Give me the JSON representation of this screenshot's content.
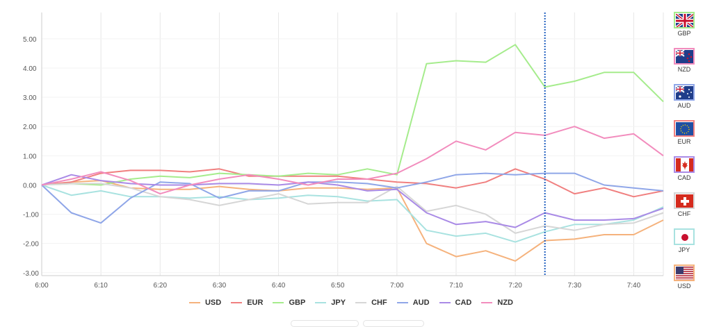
{
  "chart_data": {
    "type": "line",
    "title": "",
    "xlabel": "",
    "ylabel": "",
    "x": [
      "6:00",
      "6:05",
      "6:10",
      "6:15",
      "6:20",
      "6:25",
      "6:30",
      "6:35",
      "6:40",
      "6:45",
      "6:50",
      "6:55",
      "7:00",
      "7:05",
      "7:10",
      "7:15",
      "7:20",
      "7:25",
      "7:30",
      "7:35",
      "7:40",
      "7:45"
    ],
    "x_tick_labels": [
      "6:00",
      "6:10",
      "6:20",
      "6:30",
      "6:40",
      "6:50",
      "7:00",
      "7:10",
      "7:20",
      "7:30",
      "7:40"
    ],
    "y_tick_labels": [
      "5.00",
      "4.00",
      "3.00",
      "2.00",
      "1.00",
      "0.00",
      "-1.00",
      "-2.00",
      "-3.00"
    ],
    "ylim": [
      -3.1,
      5.9
    ],
    "grid": true,
    "legend_position": "bottom",
    "marker_x": "7:25",
    "series": [
      {
        "name": "USD",
        "color": "#f5b27c",
        "values": [
          0,
          0.1,
          0.15,
          -0.1,
          -0.15,
          -0.15,
          -0.05,
          -0.15,
          -0.2,
          -0.1,
          -0.1,
          -0.15,
          -0.1,
          -2.0,
          -2.45,
          -2.25,
          -2.6,
          -1.9,
          -1.85,
          -1.7,
          -1.7,
          -1.2
        ]
      },
      {
        "name": "EUR",
        "color": "#f07f7f",
        "values": [
          0,
          0.1,
          0.4,
          0.5,
          0.5,
          0.45,
          0.55,
          0.3,
          0.3,
          0.3,
          0.3,
          0.2,
          0.1,
          0.05,
          -0.1,
          0.1,
          0.55,
          0.2,
          -0.3,
          -0.1,
          -0.4,
          -0.2
        ]
      },
      {
        "name": "GBP",
        "color": "#a5ec8c",
        "values": [
          0,
          0.05,
          0.0,
          0.2,
          0.3,
          0.25,
          0.4,
          0.35,
          0.3,
          0.4,
          0.35,
          0.55,
          0.35,
          4.15,
          4.25,
          4.2,
          4.8,
          3.35,
          3.55,
          3.85,
          3.85,
          2.85
        ]
      },
      {
        "name": "JPY",
        "color": "#a8e2e0",
        "values": [
          0,
          -0.35,
          -0.2,
          -0.4,
          -0.4,
          -0.45,
          -0.4,
          -0.5,
          -0.45,
          -0.35,
          -0.4,
          -0.55,
          -0.5,
          -1.55,
          -1.75,
          -1.65,
          -1.95,
          -1.6,
          -1.35,
          -1.35,
          -1.2,
          -0.75
        ]
      },
      {
        "name": "CHF",
        "color": "#d6d6d6",
        "values": [
          0,
          0.05,
          0.05,
          -0.1,
          -0.4,
          -0.5,
          -0.7,
          -0.5,
          -0.3,
          -0.65,
          -0.6,
          -0.6,
          -0.05,
          -0.9,
          -0.7,
          -1.0,
          -1.65,
          -1.4,
          -1.55,
          -1.35,
          -1.3,
          -0.95
        ]
      },
      {
        "name": "AUD",
        "color": "#8fa6e8",
        "values": [
          0,
          -0.95,
          -1.3,
          -0.45,
          0.1,
          0.05,
          -0.45,
          -0.2,
          -0.2,
          0.1,
          0.1,
          0.05,
          -0.1,
          0.1,
          0.35,
          0.4,
          0.35,
          0.4,
          0.4,
          0.0,
          -0.1,
          -0.2
        ]
      },
      {
        "name": "CAD",
        "color": "#a98ae6",
        "values": [
          0,
          0.35,
          0.15,
          0.05,
          0.0,
          0.0,
          0.05,
          0.05,
          0.0,
          0.1,
          0.0,
          -0.2,
          -0.15,
          -0.95,
          -1.35,
          -1.25,
          -1.45,
          -0.95,
          -1.2,
          -1.2,
          -1.15,
          -0.8
        ]
      },
      {
        "name": "NZD",
        "color": "#f28cbd",
        "values": [
          0,
          0.2,
          0.45,
          0.15,
          -0.3,
          0.0,
          0.2,
          0.35,
          0.2,
          0.0,
          0.2,
          0.2,
          0.4,
          0.9,
          1.5,
          1.2,
          1.8,
          1.7,
          2.0,
          1.6,
          1.75,
          1.0
        ]
      }
    ]
  },
  "flags": [
    {
      "code": "GBP",
      "icon": "uk-flag-icon",
      "border": "#a5ec8c"
    },
    {
      "code": "NZD",
      "icon": "nz-flag-icon",
      "border": "#f28cbd"
    },
    {
      "code": "AUD",
      "icon": "au-flag-icon",
      "border": "#8fa6e8"
    },
    {
      "code": "EUR",
      "icon": "eu-flag-icon",
      "border": "#f07f7f"
    },
    {
      "code": "CAD",
      "icon": "ca-flag-icon",
      "border": "#a98ae6"
    },
    {
      "code": "CHF",
      "icon": "ch-flag-icon",
      "border": "#d6d6d6"
    },
    {
      "code": "JPY",
      "icon": "jp-flag-icon",
      "border": "#a8e2e0"
    },
    {
      "code": "USD",
      "icon": "us-flag-icon",
      "border": "#f5b27c"
    }
  ]
}
